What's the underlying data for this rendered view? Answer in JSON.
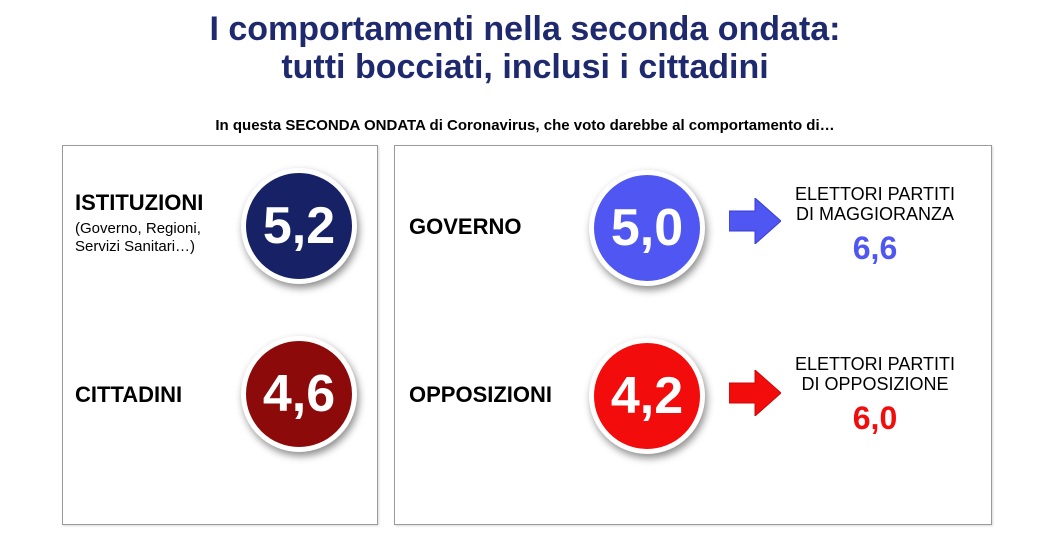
{
  "title": {
    "line1": "I comportamenti nella seconda ondata:",
    "line2": "tutti bocciati, inclusi i cittadini"
  },
  "question": "In questa SECONDA ONDATA di Coronavirus, che voto darebbe al comportamento di…",
  "left_panel": {
    "istituzioni": {
      "label": "ISTITUZIONI",
      "sub_line1": "(Governo, Regioni,",
      "sub_line2": "Servizi Sanitari…)",
      "score": "5,2",
      "color": "#172165"
    },
    "cittadini": {
      "label": "CITTADINI",
      "score": "4,6",
      "color": "#8c0a0a"
    }
  },
  "right_panel": {
    "governo": {
      "label": "GOVERNO",
      "score": "5,0",
      "color": "#4f56f2",
      "voters_line1": "ELETTORI PARTITI",
      "voters_line2": "DI MAGGIORANZA",
      "voters_score": "6,6",
      "arrow_icon": "right-arrow-icon"
    },
    "opposizioni": {
      "label": "OPPOSIZIONI",
      "score": "4,2",
      "color": "#f20c0c",
      "voters_line1": "ELETTORI PARTITI",
      "voters_line2": "DI OPPOSIZIONE",
      "voters_score": "6,0",
      "arrow_icon": "right-arrow-icon"
    }
  }
}
